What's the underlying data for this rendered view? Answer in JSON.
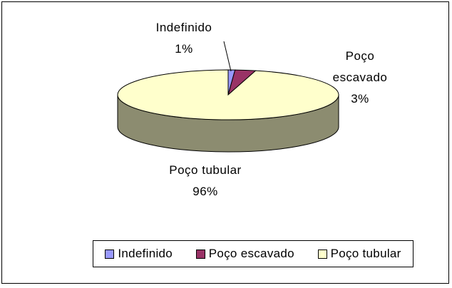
{
  "chart_data": {
    "type": "pie",
    "categories": [
      "Indefinido",
      "Poço escavado",
      "Poço tubular"
    ],
    "values": [
      1,
      3,
      96
    ],
    "value_labels": [
      "1%",
      "3%",
      "96%"
    ],
    "colors": [
      "#9999ff",
      "#993366",
      "#ffffcc"
    ],
    "legend": "bottom"
  }
}
